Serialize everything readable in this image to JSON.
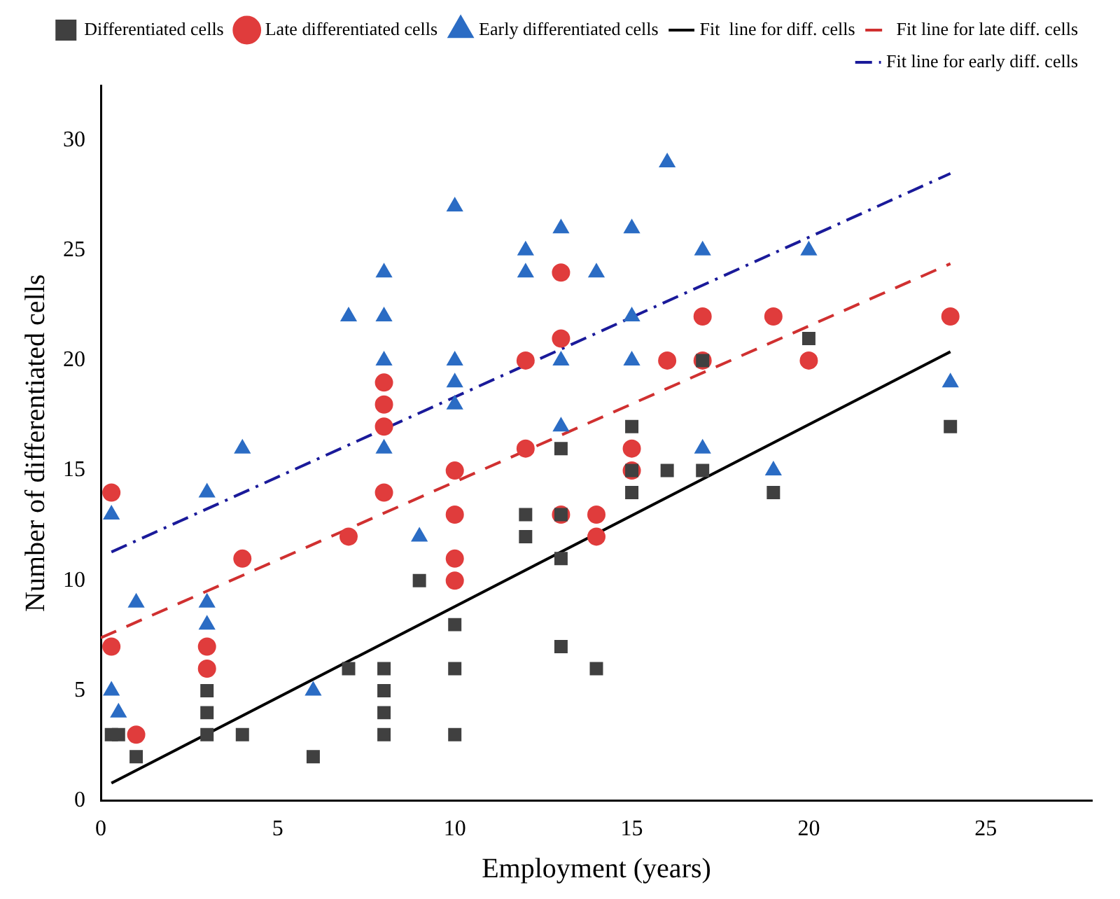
{
  "chart_data": {
    "type": "scatter",
    "xlabel": "Employment (years)",
    "ylabel": "Number of differentiated cells",
    "xlim": [
      0,
      28
    ],
    "xticks": [
      0,
      5,
      10,
      15,
      20,
      25
    ],
    "ylim": [
      0,
      32.5
    ],
    "yticks": [
      0,
      5,
      10,
      15,
      20,
      25,
      30
    ],
    "grid": false,
    "legend": "top right",
    "series": [
      {
        "name": "Differentiated cells",
        "marker": "square",
        "color": "#404040",
        "x": [
          0.3,
          0.5,
          1,
          3,
          3,
          3,
          4,
          6,
          7,
          8,
          8,
          8,
          8,
          9,
          10,
          10,
          10,
          12,
          12,
          13,
          13,
          13,
          13,
          14,
          15,
          15,
          15,
          16,
          17,
          17,
          19,
          20,
          24
        ],
        "values": [
          3,
          3,
          2,
          3,
          4,
          5,
          3,
          2,
          6,
          3,
          4,
          5,
          6,
          10,
          3,
          6,
          8,
          12,
          13,
          16,
          11,
          7,
          13,
          6,
          14,
          15,
          17,
          15,
          15,
          20,
          14,
          21,
          17
        ]
      },
      {
        "name": "Late differentiated cells",
        "marker": "circle",
        "color": "#e03c3c",
        "x": [
          0.3,
          0.3,
          1,
          3,
          3,
          4,
          7,
          8,
          8,
          8,
          8,
          10,
          10,
          10,
          10,
          12,
          12,
          13,
          13,
          13,
          14,
          14,
          15,
          15,
          16,
          17,
          17,
          19,
          20,
          24
        ],
        "values": [
          14,
          7,
          3,
          7,
          6,
          11,
          12,
          19,
          18,
          17,
          14,
          15,
          13,
          11,
          10,
          20,
          16,
          24,
          21,
          13,
          13,
          12,
          16,
          15,
          20,
          22,
          20,
          22,
          20,
          22
        ]
      },
      {
        "name": "Early differentiated cells",
        "marker": "triangle",
        "color": "#2b6cc4",
        "x": [
          0.3,
          0.3,
          0.5,
          1,
          3,
          3,
          3,
          4,
          6,
          7,
          8,
          8,
          8,
          8,
          9,
          10,
          10,
          10,
          10,
          12,
          12,
          13,
          13,
          13,
          14,
          15,
          15,
          15,
          16,
          17,
          17,
          19,
          20,
          24
        ],
        "values": [
          13,
          5,
          4,
          9,
          14,
          9,
          8,
          16,
          5,
          22,
          24,
          22,
          20,
          16,
          12,
          27,
          20,
          19,
          18,
          25,
          24,
          26,
          20,
          17,
          24,
          26,
          22,
          20,
          29,
          25,
          16,
          15,
          25,
          19
        ]
      },
      {
        "name": "Fit  line for diff. cells",
        "type": "line",
        "line_style": "solid",
        "marker": "none",
        "color": "#000000",
        "x": [
          0.3,
          24
        ],
        "values": [
          0.8,
          20.4
        ]
      },
      {
        "name": "Fit line for late diff. cells",
        "type": "line",
        "line_style": "dashed",
        "marker": "none",
        "color": "#d03030",
        "x": [
          0,
          24
        ],
        "values": [
          7.4,
          24.4
        ]
      },
      {
        "name": "Fit line for early diff. cells",
        "type": "line",
        "line_style": "dashdot",
        "marker": "none",
        "color": "#1a1a9a",
        "x": [
          0.3,
          24
        ],
        "values": [
          11.3,
          28.5
        ]
      }
    ]
  }
}
